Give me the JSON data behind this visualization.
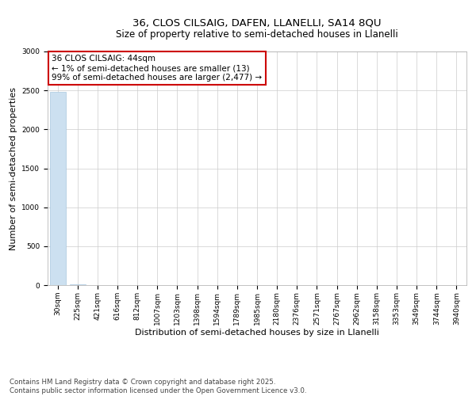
{
  "title_line1": "36, CLOS CILSAIG, DAFEN, LLANELLI, SA14 8QU",
  "title_line2": "Size of property relative to semi-detached houses in Llanelli",
  "xlabel": "Distribution of semi-detached houses by size in Llanelli",
  "ylabel": "Number of semi-detached properties",
  "categories": [
    "30sqm",
    "225sqm",
    "421sqm",
    "616sqm",
    "812sqm",
    "1007sqm",
    "1203sqm",
    "1398sqm",
    "1594sqm",
    "1789sqm",
    "1985sqm",
    "2180sqm",
    "2376sqm",
    "2571sqm",
    "2767sqm",
    "2962sqm",
    "3158sqm",
    "3353sqm",
    "3549sqm",
    "3744sqm",
    "3940sqm"
  ],
  "values": [
    2477,
    13,
    0,
    0,
    0,
    0,
    0,
    0,
    0,
    0,
    0,
    0,
    0,
    0,
    0,
    0,
    0,
    0,
    0,
    0,
    0
  ],
  "bar_color": "#cce0f0",
  "bar_edge_color": "#aac8e0",
  "ylim": [
    0,
    3000
  ],
  "yticks": [
    0,
    500,
    1000,
    1500,
    2000,
    2500,
    3000
  ],
  "annotation_title": "36 CLOS CILSAIG: 44sqm",
  "annotation_line1": "← 1% of semi-detached houses are smaller (13)",
  "annotation_line2": "99% of semi-detached houses are larger (2,477) →",
  "annotation_box_color": "#ffffff",
  "annotation_box_edge_color": "#cc0000",
  "footer_line1": "Contains HM Land Registry data © Crown copyright and database right 2025.",
  "footer_line2": "Contains public sector information licensed under the Open Government Licence v3.0.",
  "background_color": "#ffffff",
  "grid_color": "#cccccc",
  "title_fontsize": 9.5,
  "subtitle_fontsize": 8.5,
  "axis_label_fontsize": 8,
  "tick_fontsize": 6.5,
  "annotation_fontsize": 7.5,
  "footer_fontsize": 6.2
}
